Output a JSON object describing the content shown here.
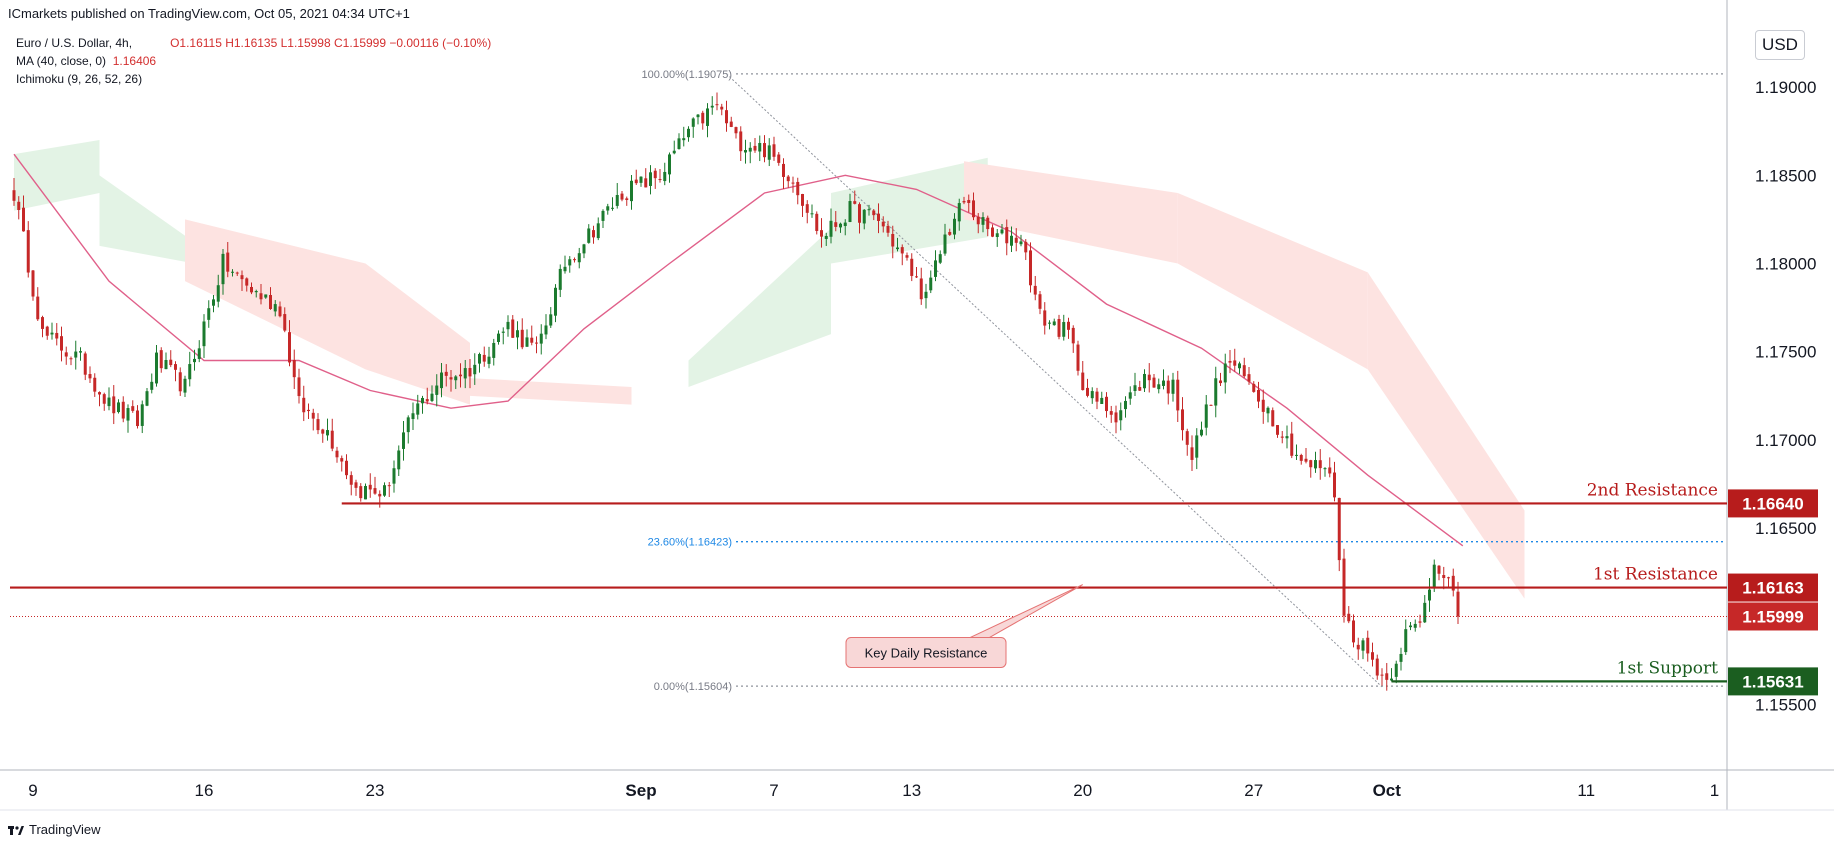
{
  "header": {
    "publisher": "ICmarkets published on TradingView.com, Oct 05, 2021 04:34 UTC+1"
  },
  "legend": {
    "symbol": "Euro / U.S. Dollar, 4h,",
    "ohlc": "O1.16115  H1.16135  L1.15998  C1.15999  −0.00116 (−0.10%)",
    "ma_label": "MA (40, close, 0)",
    "ma_value": "1.16406",
    "ichimoku_label": "Ichimoku (9, 26, 52, 26)"
  },
  "currency": "USD",
  "footer": {
    "brand": "TradingView"
  },
  "colors": {
    "bull": "#1b7a2e",
    "bear": "#c62828",
    "resistance": "#b71c1c",
    "support": "#1b5e20",
    "ma": "#e0608a",
    "cloud_bull": "#e3f3e5",
    "cloud_bear": "#fde3e1",
    "fib": "#1e88e5"
  },
  "chart_data": {
    "type": "candlestick",
    "symbol": "EURUSD",
    "timeframe": "4h",
    "ylim": [
      1.1514,
      1.1946
    ],
    "y_ticks": [
      "1.19000",
      "1.18500",
      "1.18000",
      "1.17500",
      "1.17000",
      "1.16500",
      "1.15500"
    ],
    "x_ticks": [
      {
        "label": "9",
        "index": 4
      },
      {
        "label": "16",
        "index": 40
      },
      {
        "label": "23",
        "index": 76
      },
      {
        "label": "Sep",
        "index": 132
      },
      {
        "label": "7",
        "index": 160
      },
      {
        "label": "13",
        "index": 189
      },
      {
        "label": "20",
        "index": 225
      },
      {
        "label": "27",
        "index": 261
      },
      {
        "label": "Oct",
        "index": 289
      },
      {
        "label": "11",
        "index": 331
      },
      {
        "label": "1",
        "index": 358
      }
    ],
    "key_points": [
      {
        "i": 0,
        "p": 1.184
      },
      {
        "i": 6,
        "p": 1.176
      },
      {
        "i": 14,
        "p": 1.1745
      },
      {
        "i": 20,
        "p": 1.172
      },
      {
        "i": 26,
        "p": 1.171
      },
      {
        "i": 30,
        "p": 1.1745
      },
      {
        "i": 36,
        "p": 1.173
      },
      {
        "i": 44,
        "p": 1.18
      },
      {
        "i": 50,
        "p": 1.1785
      },
      {
        "i": 56,
        "p": 1.1775
      },
      {
        "i": 60,
        "p": 1.172
      },
      {
        "i": 66,
        "p": 1.1705
      },
      {
        "i": 72,
        "p": 1.1672
      },
      {
        "i": 78,
        "p": 1.167
      },
      {
        "i": 84,
        "p": 1.1715
      },
      {
        "i": 90,
        "p": 1.1735
      },
      {
        "i": 96,
        "p": 1.174
      },
      {
        "i": 104,
        "p": 1.1765
      },
      {
        "i": 110,
        "p": 1.175
      },
      {
        "i": 116,
        "p": 1.18
      },
      {
        "i": 122,
        "p": 1.182
      },
      {
        "i": 128,
        "p": 1.184
      },
      {
        "i": 136,
        "p": 1.185
      },
      {
        "i": 142,
        "p": 1.1875
      },
      {
        "i": 148,
        "p": 1.189
      },
      {
        "i": 152,
        "p": 1.187
      },
      {
        "i": 158,
        "p": 1.1865
      },
      {
        "i": 164,
        "p": 1.1848
      },
      {
        "i": 170,
        "p": 1.1815
      },
      {
        "i": 176,
        "p": 1.183
      },
      {
        "i": 182,
        "p": 1.1825
      },
      {
        "i": 188,
        "p": 1.18
      },
      {
        "i": 192,
        "p": 1.178
      },
      {
        "i": 196,
        "p": 1.1815
      },
      {
        "i": 200,
        "p": 1.1835
      },
      {
        "i": 206,
        "p": 1.1815
      },
      {
        "i": 212,
        "p": 1.1815
      },
      {
        "i": 216,
        "p": 1.177
      },
      {
        "i": 222,
        "p": 1.176
      },
      {
        "i": 226,
        "p": 1.1725
      },
      {
        "i": 232,
        "p": 1.1715
      },
      {
        "i": 238,
        "p": 1.1735
      },
      {
        "i": 244,
        "p": 1.173
      },
      {
        "i": 248,
        "p": 1.169
      },
      {
        "i": 252,
        "p": 1.1725
      },
      {
        "i": 256,
        "p": 1.1745
      },
      {
        "i": 262,
        "p": 1.1725
      },
      {
        "i": 268,
        "p": 1.17
      },
      {
        "i": 272,
        "p": 1.1685
      },
      {
        "i": 276,
        "p": 1.1685
      },
      {
        "i": 278,
        "p": 1.167
      },
      {
        "i": 280,
        "p": 1.16
      },
      {
        "i": 282,
        "p": 1.159
      },
      {
        "i": 286,
        "p": 1.1575
      },
      {
        "i": 289,
        "p": 1.1563
      },
      {
        "i": 293,
        "p": 1.159
      },
      {
        "i": 296,
        "p": 1.1595
      },
      {
        "i": 299,
        "p": 1.163
      },
      {
        "i": 302,
        "p": 1.1625
      },
      {
        "i": 304,
        "p": 1.16
      }
    ],
    "ma": {
      "label": "MA (40, close, 0)",
      "points": [
        {
          "i": 0,
          "p": 1.1862
        },
        {
          "i": 20,
          "p": 1.179
        },
        {
          "i": 40,
          "p": 1.1745
        },
        {
          "i": 60,
          "p": 1.1745
        },
        {
          "i": 75,
          "p": 1.1728
        },
        {
          "i": 92,
          "p": 1.1718
        },
        {
          "i": 104,
          "p": 1.1722
        },
        {
          "i": 120,
          "p": 1.1763
        },
        {
          "i": 138,
          "p": 1.18
        },
        {
          "i": 158,
          "p": 1.184
        },
        {
          "i": 175,
          "p": 1.185
        },
        {
          "i": 190,
          "p": 1.1842
        },
        {
          "i": 210,
          "p": 1.1818
        },
        {
          "i": 230,
          "p": 1.1777
        },
        {
          "i": 250,
          "p": 1.1752
        },
        {
          "i": 268,
          "p": 1.1718
        },
        {
          "i": 285,
          "p": 1.168
        },
        {
          "i": 305,
          "p": 1.164
        }
      ]
    },
    "ichimoku_cloud": [
      {
        "from": 0,
        "to": 18,
        "upper": [
          1.1862,
          1.187
        ],
        "lower": [
          1.183,
          1.184
        ],
        "kind": "bull"
      },
      {
        "from": 18,
        "to": 38,
        "upper": [
          1.185,
          1.1812
        ],
        "lower": [
          1.181,
          1.18
        ],
        "kind": "bull"
      },
      {
        "from": 36,
        "to": 74,
        "upper": [
          1.1825,
          1.18
        ],
        "lower": [
          1.179,
          1.174
        ],
        "kind": "bear"
      },
      {
        "from": 74,
        "to": 96,
        "upper": [
          1.18,
          1.1755
        ],
        "lower": [
          1.174,
          1.172
        ],
        "kind": "bear"
      },
      {
        "from": 96,
        "to": 130,
        "upper": [
          1.1735,
          1.173
        ],
        "lower": [
          1.1725,
          1.172
        ],
        "kind": "bear"
      },
      {
        "from": 142,
        "to": 172,
        "upper": [
          1.1745,
          1.182
        ],
        "lower": [
          1.173,
          1.176
        ],
        "kind": "bull"
      },
      {
        "from": 172,
        "to": 205,
        "upper": [
          1.184,
          1.186
        ],
        "lower": [
          1.18,
          1.1815
        ],
        "kind": "bull"
      },
      {
        "from": 200,
        "to": 245,
        "upper": [
          1.1858,
          1.184
        ],
        "lower": [
          1.1825,
          1.18
        ],
        "kind": "bear"
      },
      {
        "from": 245,
        "to": 285,
        "upper": [
          1.184,
          1.1795
        ],
        "lower": [
          1.18,
          1.174
        ],
        "kind": "bear"
      },
      {
        "from": 285,
        "to": 318,
        "upper": [
          1.1795,
          1.166
        ],
        "lower": [
          1.174,
          1.161
        ],
        "kind": "bear"
      }
    ],
    "levels": [
      {
        "name": "2nd Resistance",
        "value": "1.16640",
        "price": 1.1664,
        "start": 69,
        "kind": "resistance"
      },
      {
        "name": "1st Resistance",
        "value": "1.16163",
        "price": 1.16163,
        "start": 0,
        "kind": "resistance"
      },
      {
        "name": "1st Support",
        "value": "1.15631",
        "price": 1.15631,
        "start": 290,
        "kind": "support"
      }
    ],
    "last_price": {
      "value": "1.15999",
      "price": 1.15999
    },
    "fibonacci": [
      {
        "label": "100.00%(1.19075)",
        "price": 1.19075,
        "start": 152
      },
      {
        "label": "23.60%(1.16423)",
        "price": 1.16423,
        "start": 152
      },
      {
        "label": "0.00%(1.15604)",
        "price": 1.15604,
        "start": 152
      }
    ],
    "trendline": {
      "from": {
        "i": 150,
        "p": 1.19075
      },
      "to": {
        "i": 288,
        "p": 1.156
      }
    },
    "annotation": {
      "text": "Key Daily Resistance",
      "target": {
        "i": 225,
        "p": 1.1618
      },
      "anchor": {
        "i": 192,
        "p": 1.1588
      }
    }
  }
}
